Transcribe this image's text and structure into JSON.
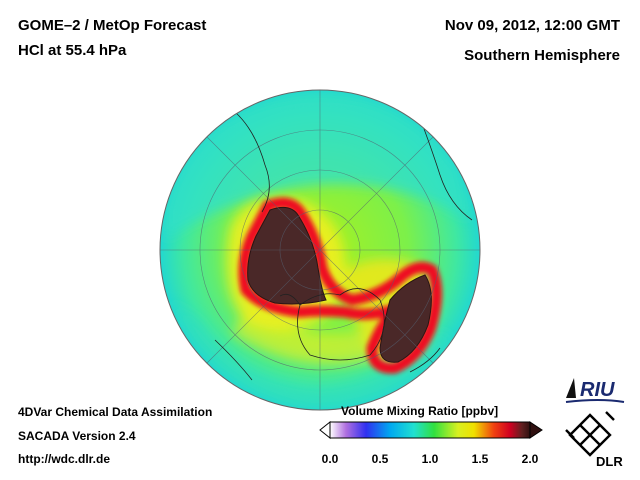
{
  "header": {
    "title": "GOME–2 / MetOp Forecast",
    "subtitle": "HCl at 55.4 hPa",
    "datetime": "Nov 09, 2012, 12:00 GMT",
    "region": "Southern Hemisphere"
  },
  "footer": {
    "line1": "4DVar Chemical Data Assimilation",
    "line2": "SACADA Version 2.4",
    "url": "http://wdc.dlr.de"
  },
  "colorbar": {
    "title": "Volume Mixing Ratio [ppbv]",
    "ticks": [
      "0.0",
      "0.5",
      "1.0",
      "1.5",
      "2.0"
    ],
    "min": 0.0,
    "max": 2.0
  },
  "logos": {
    "riu": "RIU",
    "dlr": "DLR"
  },
  "colors": {
    "ocean_background": "#22e0c0",
    "low_hcl": "#4c2a2a",
    "high_hcl": "#e8001a"
  }
}
